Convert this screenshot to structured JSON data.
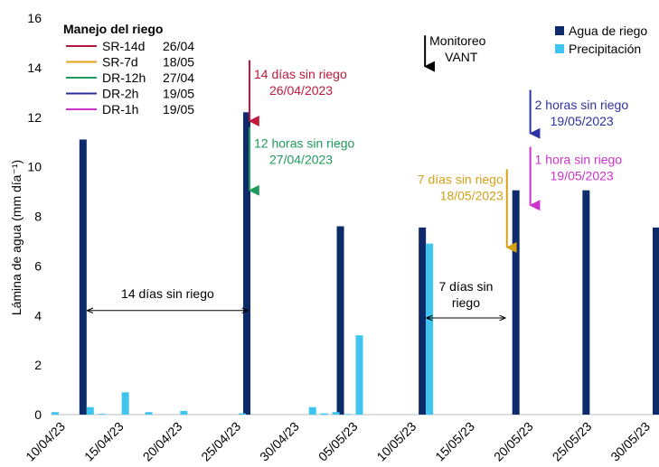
{
  "chart_data": {
    "type": "bar",
    "ylabel": "Lámina de agua (mm día⁻¹)",
    "ylim": [
      0,
      16
    ],
    "yticks": [
      0,
      2,
      4,
      6,
      8,
      10,
      12,
      14,
      16
    ],
    "xlim": [
      "2023-04-09",
      "2023-05-31"
    ],
    "xticks": [
      "10/04/23",
      "15/04/23",
      "20/04/23",
      "25/04/23",
      "30/04/23",
      "05/05/23",
      "10/05/23",
      "15/05/23",
      "20/05/23",
      "25/05/23",
      "30/05/23"
    ],
    "legend_position": "top-right",
    "series": [
      {
        "name": "Agua de riego",
        "color": "#0d2b6b",
        "x": [
          "2023-04-12",
          "2023-04-26",
          "2023-05-04",
          "2023-05-11",
          "2023-05-19",
          "2023-05-25",
          "2023-05-31"
        ],
        "values": [
          11.1,
          12.2,
          7.6,
          7.55,
          9.05,
          9.05,
          7.55
        ]
      },
      {
        "name": "Precipitación",
        "color": "#3ec6f0",
        "x": [
          "2023-04-09",
          "2023-04-12",
          "2023-04-13",
          "2023-04-15",
          "2023-04-17",
          "2023-04-20",
          "2023-04-25",
          "2023-05-01",
          "2023-05-02",
          "2023-05-03",
          "2023-05-04",
          "2023-05-05",
          "2023-05-11"
        ],
        "values": [
          0.1,
          0.3,
          0.03,
          0.9,
          0.1,
          0.15,
          0.05,
          0.3,
          0.05,
          0.1,
          0.02,
          3.2,
          6.9
        ]
      }
    ],
    "management_legend": {
      "title": "Manejo del riego",
      "items": [
        {
          "label": "SR-14d",
          "date": "26/04",
          "color": "#b0173f"
        },
        {
          "label": "SR-7d",
          "date": "18/05",
          "color": "#e8a317"
        },
        {
          "label": "DR-12h",
          "date": "27/04",
          "color": "#1e9a5a"
        },
        {
          "label": "DR-2h",
          "date": "19/05",
          "color": "#2a2f9c"
        },
        {
          "label": "DR-1h",
          "date": "19/05",
          "color": "#cc33cc"
        }
      ]
    },
    "annotations": [
      {
        "lines": [
          "14 días sin riego",
          "26/04/2023"
        ],
        "color": "#c0183a",
        "x": "2023-04-26",
        "arrow_y": [
          14.3,
          11.7
        ],
        "text_y": 14.0,
        "side": "right"
      },
      {
        "lines": [
          "12 horas sin riego",
          "27/04/2023"
        ],
        "color": "#1e9a5a",
        "x": "2023-04-26",
        "arrow_y": [
          11.6,
          8.9
        ],
        "text_y": 11.2,
        "side": "right"
      },
      {
        "lines": [
          "7 días sin riego",
          "18/05/2023"
        ],
        "color": "#d4a017",
        "x": "2023-05-18",
        "arrow_y": [
          9.9,
          6.6
        ],
        "text_y": 9.75,
        "side": "left"
      },
      {
        "lines": [
          "2 horas sin riego",
          "19/05/2023"
        ],
        "color": "#2e33a3",
        "x": "2023-05-20",
        "arrow_y": [
          13.1,
          11.2
        ],
        "text_y": 12.75,
        "side": "right"
      },
      {
        "lines": [
          "1 hora sin riego",
          "19/05/2023"
        ],
        "color": "#cc33cc",
        "x": "2023-05-20",
        "arrow_y": [
          10.8,
          8.3
        ],
        "text_y": 10.55,
        "side": "right"
      },
      {
        "lines": [
          "Monitoreo",
          "VANT"
        ],
        "color": "#000000",
        "x": "2023-05-11",
        "arrow_y": [
          15.3,
          13.9
        ],
        "text_y": 15.35,
        "side": "right"
      }
    ],
    "spans": [
      {
        "label_lines": [
          "14 días sin riego"
        ],
        "from": "2023-04-12",
        "to": "2023-04-26",
        "y": 4.2
      },
      {
        "label_lines": [
          "7 días sin",
          "riego"
        ],
        "from": "2023-05-11",
        "to": "2023-05-18",
        "y": 3.9
      }
    ]
  }
}
